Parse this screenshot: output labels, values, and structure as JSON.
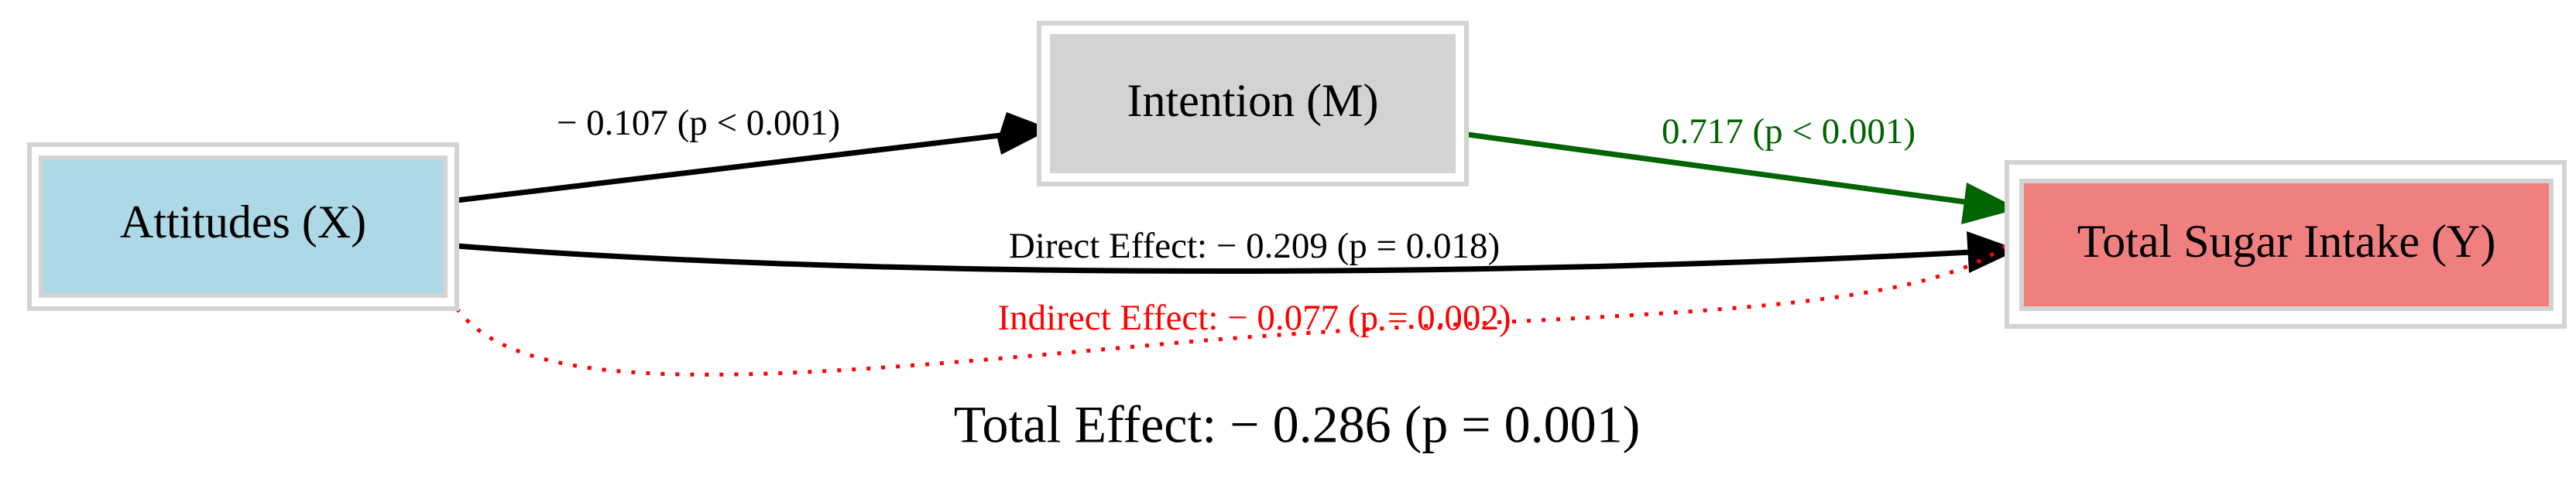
{
  "nodes": [
    {
      "label": "Attitudes (X)"
    },
    {
      "label": "Intention (M)"
    },
    {
      "label": "Total Sugar Intake (Y)"
    }
  ],
  "edges": [
    {
      "label": "− 0.107 (p < 0.001)"
    },
    {
      "label": "0.717 (p < 0.001)"
    },
    {
      "label": "Direct Effect: − 0.209 (p = 0.018)"
    },
    {
      "label": "Indirect Effect: − 0.077 (p = 0.002)"
    }
  ],
  "total_effect": "Total Effect: − 0.286 (p = 0.001)"
}
